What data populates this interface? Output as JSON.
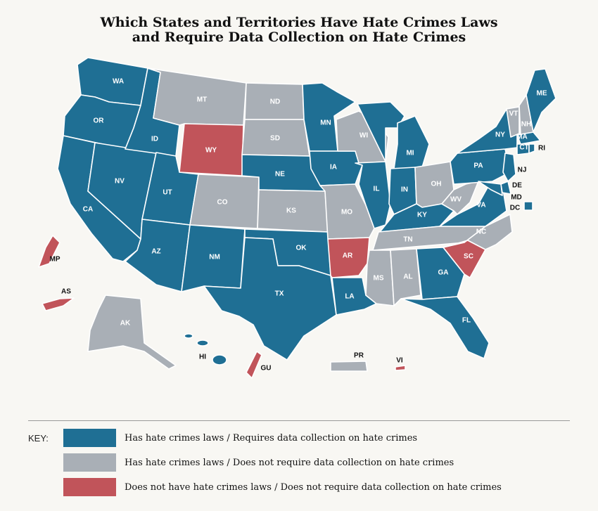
{
  "title": {
    "line1": "Which States and Territories Have Hate Crimes Laws",
    "line2": "and Require Data Collection on Hate Crimes"
  },
  "colors": {
    "blue": "#1f6f94",
    "gray": "#a9afb6",
    "red": "#c1545a",
    "background": "#f8f7f3"
  },
  "key": {
    "label": "KEY:",
    "items": [
      {
        "category": "blue",
        "text": "Has hate crimes laws / Requires data collection on hate crimes"
      },
      {
        "category": "gray",
        "text": "Has hate crimes laws / Does not require data collection on hate crimes"
      },
      {
        "category": "red",
        "text": "Does not have hate crimes laws / Does not require data collection on hate crimes"
      }
    ]
  },
  "states": {
    "blue": [
      "WA",
      "OR",
      "CA",
      "ID",
      "NV",
      "UT",
      "AZ",
      "NM",
      "TX",
      "OK",
      "NE",
      "MN",
      "IA",
      "IL",
      "IN",
      "MI",
      "KY",
      "LA",
      "GA",
      "FL",
      "VA",
      "PA",
      "NY",
      "NJ",
      "DE",
      "MD",
      "CT",
      "RI",
      "MA",
      "ME",
      "DC",
      "HI"
    ],
    "gray": [
      "MT",
      "ND",
      "SD",
      "CO",
      "KS",
      "MO",
      "WI",
      "OH",
      "WV",
      "TN",
      "NC",
      "MS",
      "AL",
      "VT",
      "NH",
      "AK",
      "PR"
    ],
    "red": [
      "WY",
      "AR",
      "SC",
      "MP",
      "AS",
      "GU",
      "VI"
    ]
  },
  "labels": {
    "WA": "WA",
    "OR": "OR",
    "CA": "CA",
    "ID": "ID",
    "NV": "NV",
    "UT": "UT",
    "AZ": "AZ",
    "MT": "MT",
    "WY": "WY",
    "CO": "CO",
    "NM": "NM",
    "ND": "ND",
    "SD": "SD",
    "NE": "NE",
    "KS": "KS",
    "OK": "OK",
    "TX": "TX",
    "MN": "MN",
    "IA": "IA",
    "MO": "MO",
    "AR": "AR",
    "LA": "LA",
    "WI": "WI",
    "IL": "IL",
    "MI": "MI",
    "IN": "IN",
    "OH": "OH",
    "KY": "KY",
    "TN": "TN",
    "MS": "MS",
    "AL": "AL",
    "GA": "GA",
    "FL": "FL",
    "SC": "SC",
    "NC": "NC",
    "VA": "VA",
    "WV": "WV",
    "PA": "PA",
    "NY": "NY",
    "VT": "VT",
    "NH": "NH",
    "ME": "ME",
    "MA": "MA",
    "CT": "CT",
    "RI": "RI",
    "NJ": "NJ",
    "DE": "DE",
    "MD": "MD",
    "DC": "DC",
    "AK": "AK",
    "HI": "HI",
    "PR": "PR",
    "VI": "VI",
    "GU": "GU",
    "MP": "MP",
    "AS": "AS"
  }
}
